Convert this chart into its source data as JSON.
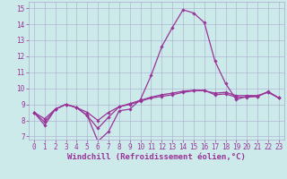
{
  "xlabel": "Windchill (Refroidissement éolien,°C)",
  "background_color": "#cceaea",
  "grid_color": "#aaaacc",
  "line_color": "#993399",
  "ylim": [
    6.8,
    15.4
  ],
  "xlim": [
    -0.5,
    23.5
  ],
  "yticks": [
    7,
    8,
    9,
    10,
    11,
    12,
    13,
    14,
    15
  ],
  "xticks": [
    0,
    1,
    2,
    3,
    4,
    5,
    6,
    7,
    8,
    9,
    10,
    11,
    12,
    13,
    14,
    15,
    16,
    17,
    18,
    19,
    20,
    21,
    22,
    23
  ],
  "line1_y": [
    8.5,
    7.7,
    8.7,
    9.0,
    8.8,
    8.3,
    6.7,
    7.3,
    8.6,
    8.7,
    9.3,
    10.8,
    12.6,
    13.8,
    14.9,
    14.7,
    14.1,
    11.7,
    10.3,
    9.3,
    9.5,
    9.5,
    9.8,
    9.4
  ],
  "line2_y": [
    8.5,
    8.1,
    8.7,
    9.0,
    8.8,
    8.5,
    8.0,
    8.5,
    8.85,
    9.0,
    9.2,
    9.4,
    9.5,
    9.6,
    9.75,
    9.85,
    9.85,
    9.7,
    9.75,
    9.55,
    9.55,
    9.55,
    9.75,
    9.4
  ],
  "line3_y": [
    8.5,
    7.9,
    8.7,
    9.0,
    8.8,
    8.3,
    7.5,
    8.2,
    8.85,
    9.05,
    9.25,
    9.45,
    9.6,
    9.7,
    9.82,
    9.88,
    9.88,
    9.6,
    9.65,
    9.45,
    9.45,
    9.5,
    9.78,
    9.4
  ],
  "marker": "D",
  "markersize": 1.8,
  "linewidth": 0.9,
  "font_color": "#993399",
  "tick_fontsize": 5.5,
  "xlabel_fontsize": 6.5
}
